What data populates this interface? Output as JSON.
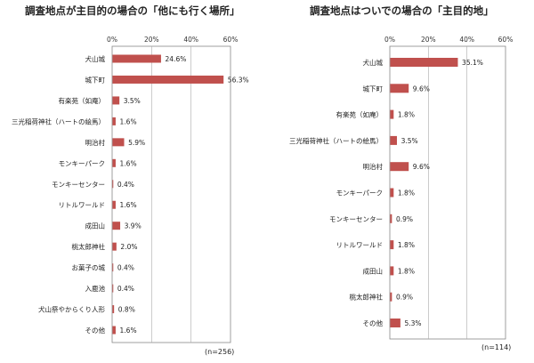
{
  "chart_data": [
    {
      "type": "bar",
      "orientation": "horizontal",
      "title": "調査地点が主目的の場合の「他にも行く場所」",
      "categories": [
        "犬山城",
        "城下町",
        "有楽苑（如庵）",
        "三光稲荷神社（ハートの絵馬）",
        "明治村",
        "モンキーパーク",
        "モンキーセンター",
        "リトルワールド",
        "成田山",
        "桃太郎神社",
        "お菓子の城",
        "入鹿池",
        "犬山祭やからくり人形",
        "その他"
      ],
      "values": [
        24.6,
        56.3,
        3.5,
        1.6,
        5.9,
        1.6,
        0.4,
        1.6,
        3.9,
        2.0,
        0.4,
        0.4,
        0.8,
        1.6
      ],
      "value_labels": [
        "24.6%",
        "56.3%",
        "3.5%",
        "1.6%",
        "5.9%",
        "1.6%",
        "0.4%",
        "1.6%",
        "3.9%",
        "2.0%",
        "0.4%",
        "0.4%",
        "0.8%",
        "1.6%"
      ],
      "xlim": [
        0,
        60
      ],
      "ticks": [
        "0%",
        "20%",
        "40%",
        "60%"
      ],
      "grid": true,
      "note": "(n=256)",
      "bar_color": "#c0504d"
    },
    {
      "type": "bar",
      "orientation": "horizontal",
      "title": "調査地点はついでの場合の「主目的地」",
      "categories": [
        "犬山城",
        "城下町",
        "有楽苑（如庵）",
        "三光稲荷神社（ハートの絵馬）",
        "明治村",
        "モンキーパーク",
        "モンキーセンター",
        "リトルワールド",
        "成田山",
        "桃太郎神社",
        "その他"
      ],
      "values": [
        35.1,
        9.6,
        1.8,
        3.5,
        9.6,
        1.8,
        0.9,
        1.8,
        1.8,
        0.9,
        5.3
      ],
      "value_labels": [
        "35.1%",
        "9.6%",
        "1.8%",
        "3.5%",
        "9.6%",
        "1.8%",
        "0.9%",
        "1.8%",
        "1.8%",
        "0.9%",
        "5.3%"
      ],
      "xlim": [
        0,
        60
      ],
      "ticks": [
        "0%",
        "20%",
        "40%",
        "60%"
      ],
      "grid": true,
      "note": "(n=114)",
      "bar_color": "#c0504d"
    }
  ]
}
